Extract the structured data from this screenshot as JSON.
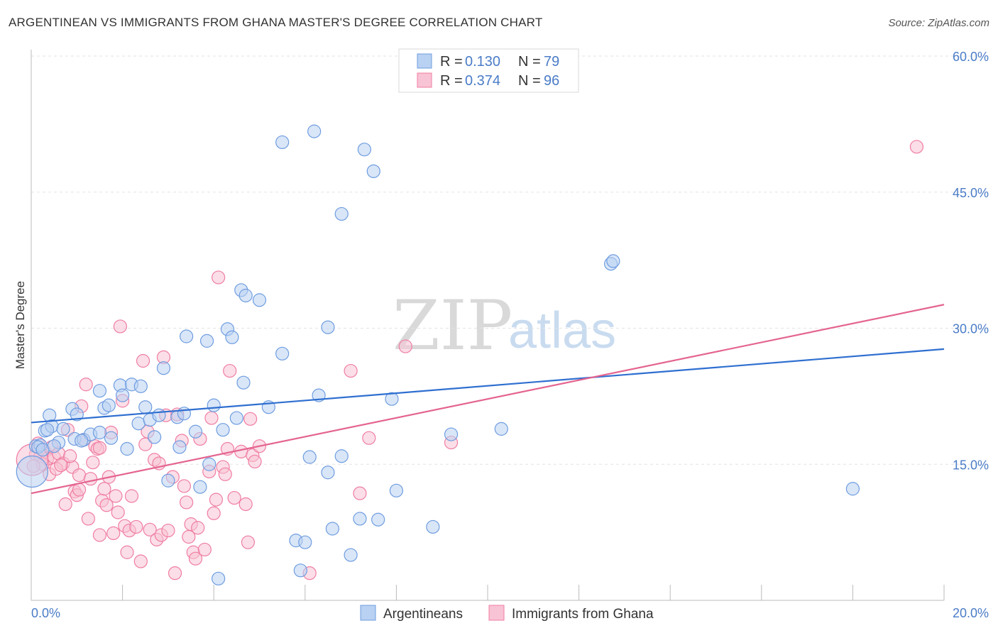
{
  "title": "ARGENTINEAN VS IMMIGRANTS FROM GHANA MASTER'S DEGREE CORRELATION CHART",
  "source": "Source: ZipAtlas.com",
  "watermark": {
    "zip": "ZIP",
    "atlas": "atlas"
  },
  "chart_data": {
    "type": "scatter",
    "xlabel": "",
    "ylabel": "Master's Degree",
    "xlim": [
      0,
      20
    ],
    "ylim": [
      0,
      60
    ],
    "x_tick_labels": [
      "0.0%",
      "20.0%"
    ],
    "y_ticks": [
      15,
      30,
      45,
      60
    ],
    "y_tick_labels": [
      "15.0%",
      "30.0%",
      "45.0%",
      "60.0%"
    ],
    "grid": true,
    "legend": {
      "placement": "top-center",
      "entries": [
        {
          "r_label": "R =",
          "r_value": "0.130",
          "n_label": "N =",
          "n_value": "79"
        },
        {
          "r_label": "R =",
          "r_value": "0.374",
          "n_label": "N =",
          "n_value": "96"
        }
      ]
    },
    "bottom_legend": [
      "Argentineans",
      "Immigrants from Ghana"
    ],
    "series": [
      {
        "name": "Argentineans",
        "color": "#6f9de0",
        "fill": "#b9d1f2",
        "trend": {
          "x": [
            0,
            20
          ],
          "y": [
            19.6,
            27.7
          ]
        },
        "points": [
          [
            0.1,
            17.0
          ],
          [
            0.2,
            17.1
          ],
          [
            0.4,
            20.4
          ],
          [
            0.3,
            18.7
          ],
          [
            0.45,
            19.2
          ],
          [
            0.6,
            17.4
          ],
          [
            0.7,
            18.9
          ],
          [
            0.9,
            21.1
          ],
          [
            1.0,
            20.5
          ],
          [
            0.95,
            17.8
          ],
          [
            1.15,
            17.7
          ],
          [
            1.3,
            18.3
          ],
          [
            1.5,
            18.5
          ],
          [
            1.6,
            21.2
          ],
          [
            1.7,
            21.5
          ],
          [
            1.5,
            23.1
          ],
          [
            1.75,
            17.9
          ],
          [
            1.95,
            23.7
          ],
          [
            2.0,
            22.6
          ],
          [
            2.2,
            23.8
          ],
          [
            2.1,
            16.7
          ],
          [
            2.4,
            23.6
          ],
          [
            2.5,
            21.3
          ],
          [
            2.35,
            19.5
          ],
          [
            2.6,
            19.9
          ],
          [
            2.7,
            18.0
          ],
          [
            2.9,
            25.6
          ],
          [
            2.8,
            20.4
          ],
          [
            3.0,
            13.2
          ],
          [
            3.2,
            20.2
          ],
          [
            3.35,
            20.6
          ],
          [
            3.25,
            16.9
          ],
          [
            3.4,
            29.1
          ],
          [
            3.6,
            18.6
          ],
          [
            3.7,
            12.5
          ],
          [
            3.85,
            28.6
          ],
          [
            3.9,
            15.0
          ],
          [
            4.0,
            21.5
          ],
          [
            4.2,
            18.8
          ],
          [
            4.3,
            29.9
          ],
          [
            4.4,
            29.0
          ],
          [
            4.5,
            20.1
          ],
          [
            4.6,
            34.2
          ],
          [
            4.7,
            33.6
          ],
          [
            4.65,
            24.0
          ],
          [
            5.0,
            33.1
          ],
          [
            5.2,
            21.3
          ],
          [
            5.5,
            27.2
          ],
          [
            5.5,
            50.5
          ],
          [
            5.8,
            6.6
          ],
          [
            5.9,
            3.3
          ],
          [
            6.0,
            6.4
          ],
          [
            6.1,
            15.8
          ],
          [
            6.3,
            22.6
          ],
          [
            6.2,
            51.7
          ],
          [
            6.5,
            14.1
          ],
          [
            6.5,
            30.1
          ],
          [
            6.6,
            7.9
          ],
          [
            6.8,
            15.9
          ],
          [
            6.8,
            42.6
          ],
          [
            7.0,
            5.0
          ],
          [
            7.2,
            9.0
          ],
          [
            7.3,
            49.7
          ],
          [
            7.5,
            47.3
          ],
          [
            7.6,
            8.9
          ],
          [
            7.9,
            22.2
          ],
          [
            8.0,
            12.1
          ],
          [
            8.8,
            8.1
          ],
          [
            9.2,
            18.3
          ],
          [
            10.3,
            18.9
          ],
          [
            12.7,
            37.1
          ],
          [
            12.75,
            37.4
          ],
          [
            18.0,
            12.3
          ],
          [
            0.15,
            16.9
          ],
          [
            0.25,
            16.6
          ],
          [
            0.5,
            17.0
          ],
          [
            0.35,
            18.8
          ],
          [
            1.1,
            17.6
          ],
          [
            4.1,
            2.4
          ]
        ],
        "big_points": [
          [
            0.02,
            14.2
          ]
        ]
      },
      {
        "name": "Immigrants from Ghana",
        "color": "#f07da2",
        "fill": "#f8c3d4",
        "trend": {
          "x": [
            0,
            20
          ],
          "y": [
            11.8,
            32.6
          ]
        },
        "points": [
          [
            0.1,
            16.1
          ],
          [
            0.2,
            15.9
          ],
          [
            0.3,
            16.4
          ],
          [
            0.35,
            15.6
          ],
          [
            0.45,
            16.9
          ],
          [
            0.5,
            15.8
          ],
          [
            0.6,
            16.2
          ],
          [
            0.7,
            15.1
          ],
          [
            0.75,
            10.6
          ],
          [
            0.8,
            18.8
          ],
          [
            0.9,
            14.7
          ],
          [
            0.95,
            12.0
          ],
          [
            1.0,
            11.6
          ],
          [
            1.05,
            13.8
          ],
          [
            1.1,
            21.4
          ],
          [
            1.15,
            17.7
          ],
          [
            1.2,
            23.8
          ],
          [
            1.25,
            9.0
          ],
          [
            1.3,
            13.4
          ],
          [
            1.35,
            15.2
          ],
          [
            1.4,
            17.0
          ],
          [
            1.45,
            16.7
          ],
          [
            1.5,
            7.2
          ],
          [
            1.55,
            11.0
          ],
          [
            1.6,
            12.3
          ],
          [
            1.65,
            10.5
          ],
          [
            1.7,
            13.6
          ],
          [
            1.75,
            18.5
          ],
          [
            1.8,
            7.4
          ],
          [
            1.85,
            11.5
          ],
          [
            1.9,
            9.7
          ],
          [
            1.95,
            30.2
          ],
          [
            2.0,
            22.0
          ],
          [
            2.05,
            8.2
          ],
          [
            2.1,
            5.3
          ],
          [
            2.15,
            7.7
          ],
          [
            2.2,
            11.5
          ],
          [
            2.3,
            8.1
          ],
          [
            2.4,
            4.3
          ],
          [
            2.45,
            26.4
          ],
          [
            2.5,
            17.2
          ],
          [
            2.55,
            18.6
          ],
          [
            2.6,
            7.8
          ],
          [
            2.7,
            15.5
          ],
          [
            2.75,
            6.7
          ],
          [
            2.8,
            15.1
          ],
          [
            2.85,
            7.2
          ],
          [
            2.9,
            26.8
          ],
          [
            2.95,
            20.4
          ],
          [
            3.0,
            7.7
          ],
          [
            3.1,
            13.6
          ],
          [
            3.15,
            3.0
          ],
          [
            3.2,
            20.5
          ],
          [
            3.3,
            17.6
          ],
          [
            3.35,
            12.6
          ],
          [
            3.4,
            10.8
          ],
          [
            3.45,
            7.0
          ],
          [
            3.5,
            8.4
          ],
          [
            3.55,
            5.3
          ],
          [
            3.6,
            4.6
          ],
          [
            3.65,
            8.0
          ],
          [
            3.7,
            17.8
          ],
          [
            3.8,
            5.6
          ],
          [
            3.9,
            14.2
          ],
          [
            3.95,
            20.1
          ],
          [
            4.0,
            9.6
          ],
          [
            4.05,
            11.1
          ],
          [
            4.1,
            35.6
          ],
          [
            4.2,
            14.7
          ],
          [
            4.25,
            13.9
          ],
          [
            4.3,
            16.7
          ],
          [
            4.35,
            25.3
          ],
          [
            4.45,
            11.3
          ],
          [
            4.6,
            16.4
          ],
          [
            4.7,
            10.6
          ],
          [
            4.75,
            6.4
          ],
          [
            4.8,
            20.0
          ],
          [
            4.85,
            16.0
          ],
          [
            4.9,
            15.3
          ],
          [
            5.0,
            17.0
          ],
          [
            6.1,
            3.0
          ],
          [
            7.0,
            25.3
          ],
          [
            7.2,
            11.8
          ],
          [
            7.4,
            17.9
          ],
          [
            8.2,
            28.0
          ],
          [
            9.2,
            17.4
          ],
          [
            0.4,
            13.9
          ],
          [
            0.55,
            14.5
          ],
          [
            0.65,
            14.9
          ],
          [
            1.05,
            12.2
          ],
          [
            1.5,
            16.8
          ],
          [
            0.15,
            17.3
          ],
          [
            0.85,
            15.9
          ],
          [
            19.4,
            50.0
          ],
          [
            0.25,
            15.0
          ],
          [
            0.05,
            14.8
          ]
        ],
        "big_points": [
          [
            0.02,
            15.5
          ]
        ]
      }
    ]
  }
}
